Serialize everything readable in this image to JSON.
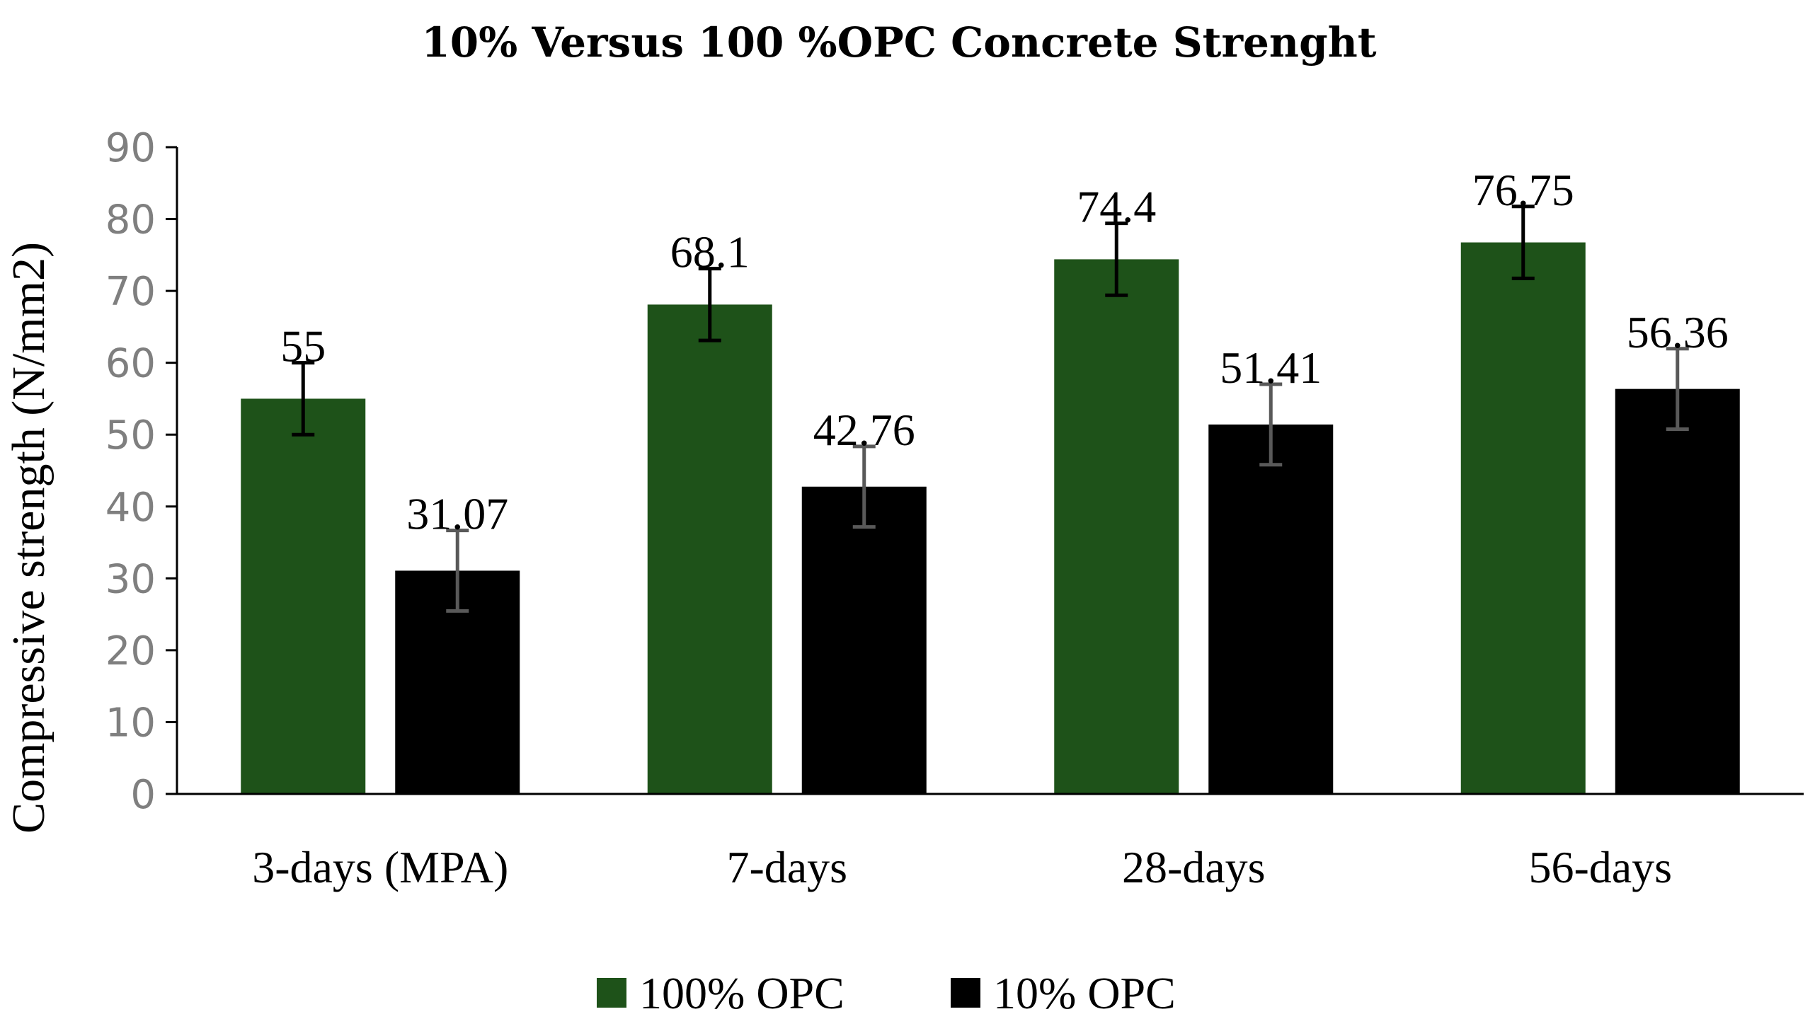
{
  "chart_data": {
    "type": "bar",
    "title": "10% Versus 100 %OPC Concrete Strenght",
    "xlabel": "",
    "ylabel": "Compressive strength (N/mm2)",
    "ylim": [
      0,
      90
    ],
    "yticks": [
      0,
      10,
      20,
      30,
      40,
      50,
      60,
      70,
      80,
      90
    ],
    "categories": [
      "3-days (MPA)",
      "7-days",
      "28-days",
      "56-days"
    ],
    "series": [
      {
        "name": "100% OPC",
        "color": "#1e5219",
        "error_color": "#000000",
        "values": [
          55,
          68.1,
          74.4,
          76.75
        ],
        "labels": [
          "55",
          "68.1",
          "74.4",
          "76.75"
        ],
        "error": [
          5,
          5,
          5,
          5
        ]
      },
      {
        "name": "10% OPC",
        "color": "#000000",
        "error_color": "#595959",
        "values": [
          31.07,
          42.76,
          51.41,
          56.36
        ],
        "labels": [
          "31.07",
          "42.76",
          "51.41",
          "56.36"
        ],
        "error": [
          5.6,
          5.6,
          5.6,
          5.6
        ]
      }
    ],
    "legend": "bottom",
    "grid": false
  }
}
